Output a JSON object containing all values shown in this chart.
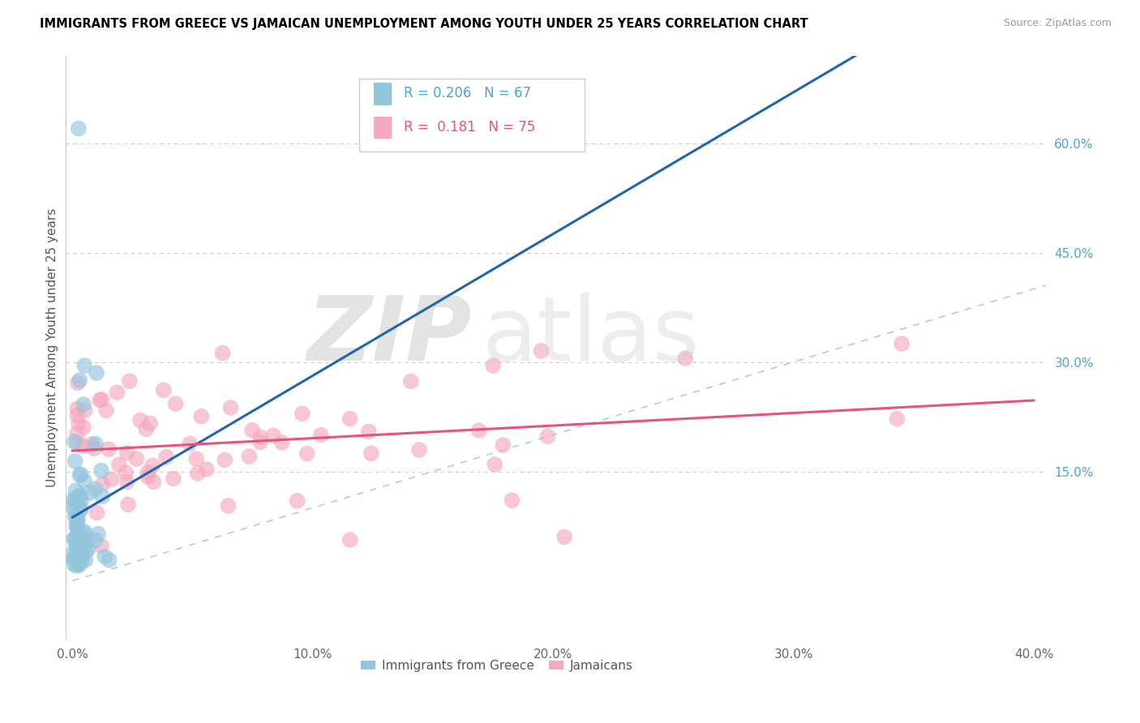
{
  "title": "IMMIGRANTS FROM GREECE VS JAMAICAN UNEMPLOYMENT AMONG YOUTH UNDER 25 YEARS CORRELATION CHART",
  "source": "Source: ZipAtlas.com",
  "ylabel": "Unemployment Among Youth under 25 years",
  "xlim": [
    -0.003,
    0.405
  ],
  "ylim": [
    -0.08,
    0.72
  ],
  "xtick_vals": [
    0.0,
    0.1,
    0.2,
    0.3,
    0.4
  ],
  "xtick_labels": [
    "0.0%",
    "10.0%",
    "20.0%",
    "30.0%",
    "40.0%"
  ],
  "ytick_vals_right": [
    0.6,
    0.45,
    0.3,
    0.15
  ],
  "ytick_labels_right": [
    "60.0%",
    "45.0%",
    "30.0%",
    "15.0%"
  ],
  "color_blue": "#92C5DE",
  "color_blue_line": "#2166AC",
  "color_pink": "#F4A9BE",
  "color_pink_line": "#E8537A",
  "color_diag": "#AACCEE",
  "color_grid": "#CCCCCC",
  "color_right_tick": "#4BA3D9"
}
